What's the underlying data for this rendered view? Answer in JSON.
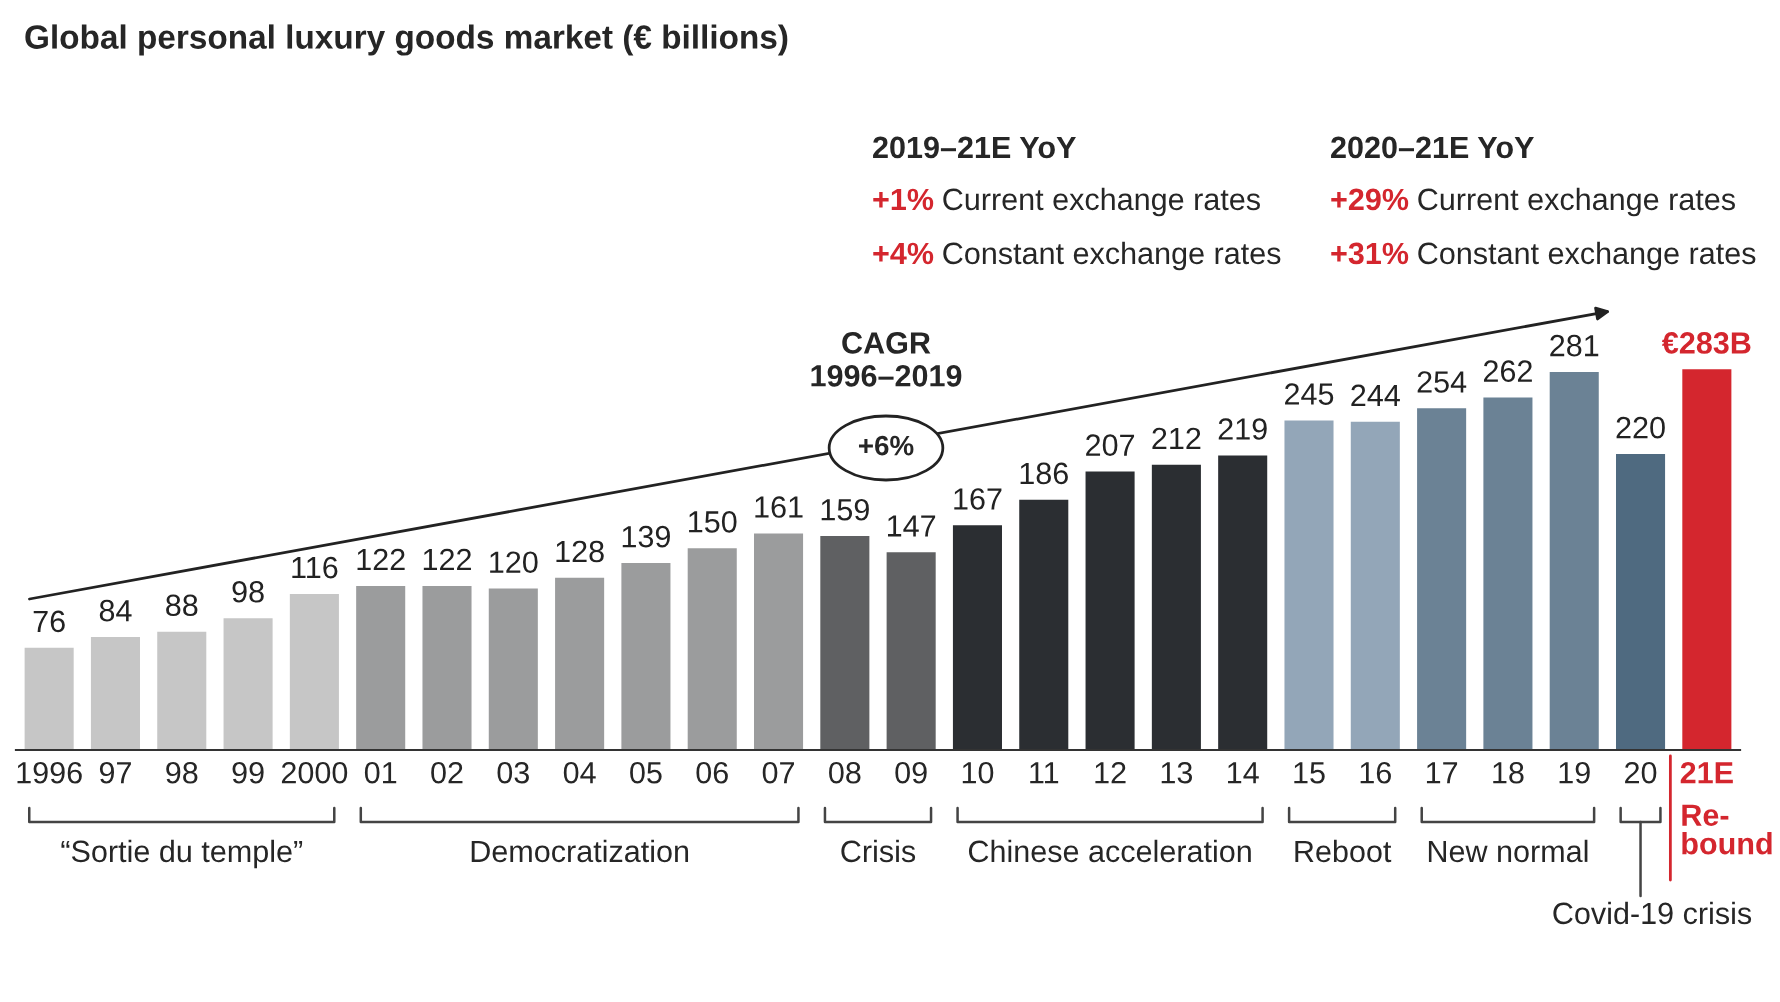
{
  "chart_data": {
    "type": "bar",
    "title": "Global personal luxury goods market (€ billions)",
    "categories": [
      "1996",
      "97",
      "98",
      "99",
      "2000",
      "01",
      "02",
      "03",
      "04",
      "05",
      "06",
      "07",
      "08",
      "09",
      "10",
      "11",
      "12",
      "13",
      "14",
      "15",
      "16",
      "17",
      "18",
      "19",
      "20",
      "21E"
    ],
    "values": [
      76,
      84,
      88,
      98,
      116,
      122,
      122,
      120,
      128,
      139,
      150,
      161,
      159,
      147,
      167,
      186,
      207,
      212,
      219,
      245,
      244,
      254,
      262,
      281,
      220,
      283
    ],
    "value_labels": [
      "76",
      "84",
      "88",
      "98",
      "116",
      "122",
      "122",
      "120",
      "128",
      "139",
      "150",
      "161",
      "159",
      "147",
      "167",
      "186",
      "207",
      "212",
      "219",
      "245",
      "244",
      "254",
      "262",
      "281",
      "220",
      "€283B"
    ],
    "colors": [
      "#c6c6c6",
      "#c6c6c6",
      "#c6c6c6",
      "#c6c6c6",
      "#c6c6c6",
      "#9b9c9d",
      "#9b9c9d",
      "#9b9c9d",
      "#9b9c9d",
      "#9b9c9d",
      "#9b9c9d",
      "#9b9c9d",
      "#5f6062",
      "#5f6062",
      "#2b2e32",
      "#2b2e32",
      "#2b2e32",
      "#2b2e32",
      "#2b2e32",
      "#93a6b8",
      "#93a6b8",
      "#6b8295",
      "#6b8295",
      "#6b8295",
      "#4f6a80",
      "#d4262e"
    ],
    "annotations": [
      "2019–21E YoY",
      "+1% Current exchange rates",
      "+4% Constant exchange rates",
      "2020–21E YoY",
      "+29% Current exchange rates",
      "+31% Constant exchange rates",
      "CAGR\n1996–2019",
      "+6%",
      "“Sortie du temple”",
      "Democratization",
      "Crisis",
      "Chinese acceleration",
      "Reboot",
      "New normal",
      "Re-\nbound",
      "Covid-19 crisis"
    ]
  }
}
